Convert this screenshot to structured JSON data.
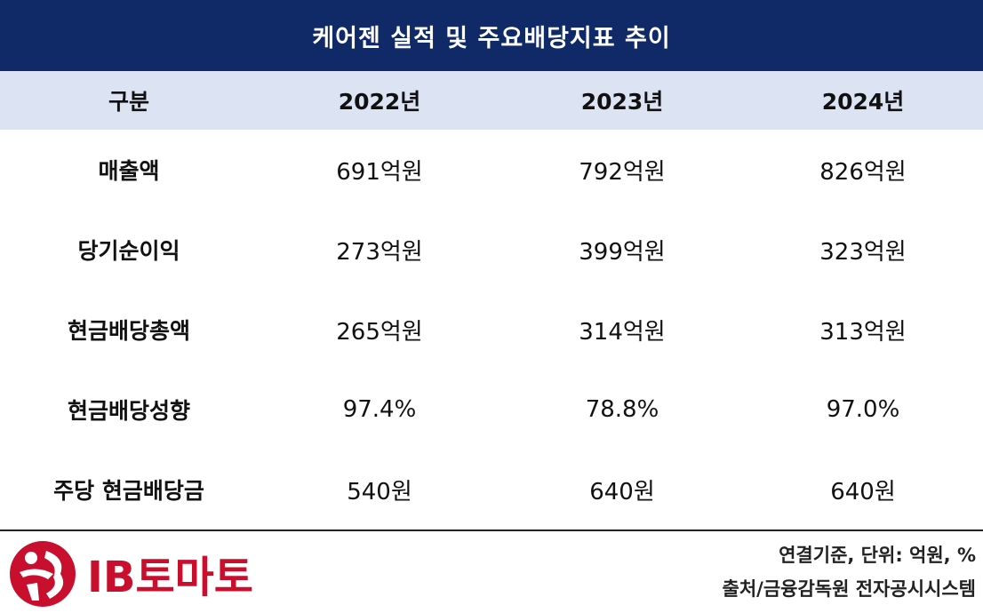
{
  "title": "케어젠 실적 및 주요배당지표 추이",
  "headers": [
    "구분",
    "2022년",
    "2023년",
    "2024년"
  ],
  "rows": [
    {
      "label": "매출액",
      "values": [
        "691억원",
        "792억원",
        "826억원"
      ]
    },
    {
      "label": "당기순이익",
      "values": [
        "273억원",
        "399억원",
        "323억원"
      ]
    },
    {
      "label": "현금배당총액",
      "values": [
        "265억원",
        "314억원",
        "313억원"
      ]
    },
    {
      "label": "현금배당성향",
      "values": [
        "97.4%",
        "78.8%",
        "97.0%"
      ]
    },
    {
      "label": "주당 현금배당금",
      "values": [
        "540원",
        "640원",
        "640원"
      ]
    }
  ],
  "notes": {
    "basis": "연결기준, 단위: 억원, %",
    "source": "출처/금융감독원 전자공시시스템"
  },
  "logo": {
    "text": "IB토마토",
    "color": "#c8102e",
    "icon": "ib-tomato-logo-icon"
  },
  "colors": {
    "title_bg": "#0f2a66",
    "header_bg": "#dce3f3"
  }
}
